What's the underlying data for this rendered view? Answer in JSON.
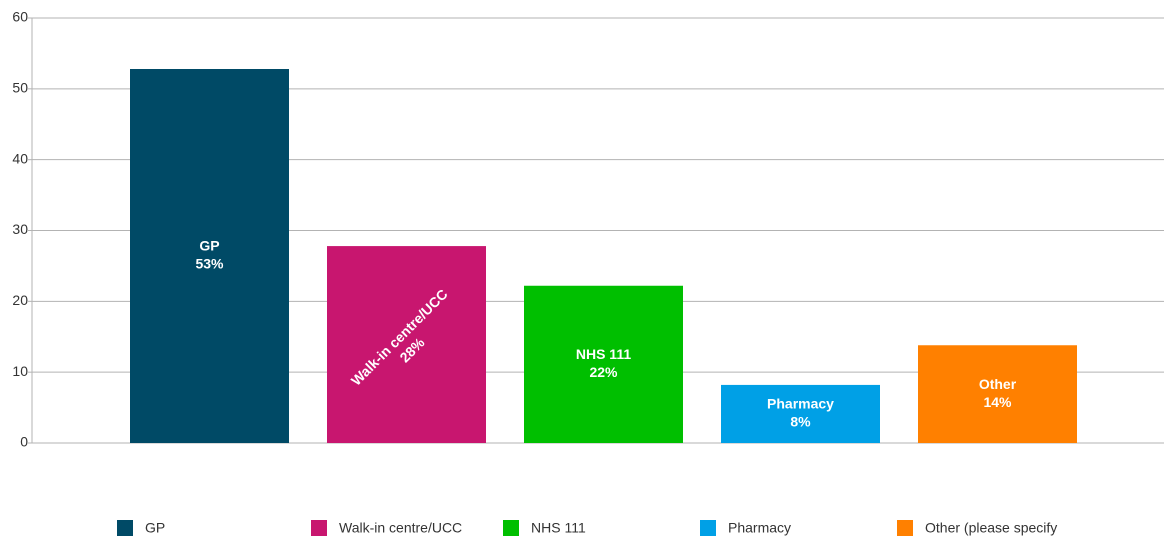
{
  "chart_data": {
    "type": "bar",
    "categories": [
      "GP",
      "Walk-in centre/UCC",
      "NHS 111",
      "Pharmacy",
      "Other"
    ],
    "values": [
      52.8,
      27.8,
      22.2,
      8.2,
      13.8
    ],
    "value_labels": [
      "53%",
      "28%",
      "22%",
      "8%",
      "14%"
    ],
    "colors": [
      "#004a66",
      "#c8166f",
      "#00bf00",
      "#00a0e6",
      "#ff8000"
    ],
    "legend": [
      "GP",
      "Walk-in centre/UCC",
      "NHS 111",
      "Pharmacy",
      "Other (please specify"
    ],
    "rotated_labels": [
      false,
      true,
      false,
      false,
      false
    ],
    "ylim": [
      0,
      60
    ],
    "yticks": [
      0,
      10,
      20,
      30,
      40,
      50,
      60
    ],
    "grid": true
  }
}
